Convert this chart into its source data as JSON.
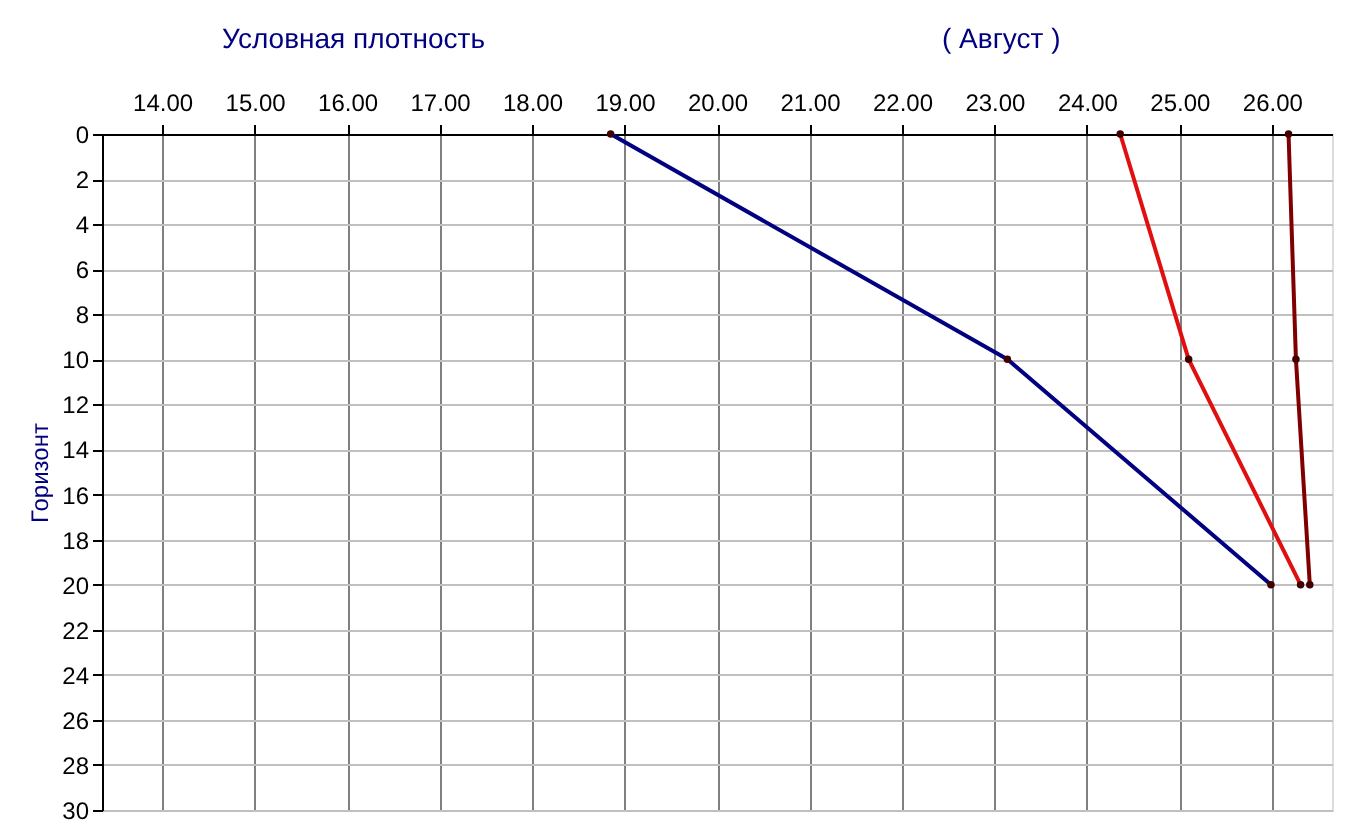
{
  "chart_data": {
    "type": "line",
    "title": "Условная плотность",
    "ylabel": "Горизонт",
    "annotations": [
      "( Август )"
    ],
    "xlim": [
      13.35,
      26.65
    ],
    "ylim": [
      30,
      0
    ],
    "xticks": [
      {
        "value": 14,
        "label": "14.00"
      },
      {
        "value": 15,
        "label": "15.00"
      },
      {
        "value": 16,
        "label": "16.00"
      },
      {
        "value": 17,
        "label": "17.00"
      },
      {
        "value": 18,
        "label": "18.00"
      },
      {
        "value": 19,
        "label": "19.00"
      },
      {
        "value": 20,
        "label": "20.00"
      },
      {
        "value": 21,
        "label": "21.00"
      },
      {
        "value": 22,
        "label": "22.00"
      },
      {
        "value": 23,
        "label": "23.00"
      },
      {
        "value": 24,
        "label": "24.00"
      },
      {
        "value": 25,
        "label": "25.00"
      },
      {
        "value": 26,
        "label": "26.00"
      }
    ],
    "yticks": [
      0,
      2,
      4,
      6,
      8,
      10,
      12,
      14,
      16,
      18,
      20,
      22,
      24,
      26,
      28,
      30
    ],
    "grid": true,
    "marker": "circle",
    "line_style": "solid",
    "series": [
      {
        "color": "#000080",
        "x": [
          18.85,
          23.14,
          25.99
        ],
        "values": [
          0,
          10,
          20
        ]
      },
      {
        "color": "#e01010",
        "x": [
          24.36,
          25.1,
          26.31
        ],
        "values": [
          0,
          10,
          20
        ]
      },
      {
        "color": "#800000",
        "x": [
          26.18,
          26.26,
          26.41
        ],
        "values": [
          0,
          10,
          20
        ]
      }
    ]
  }
}
